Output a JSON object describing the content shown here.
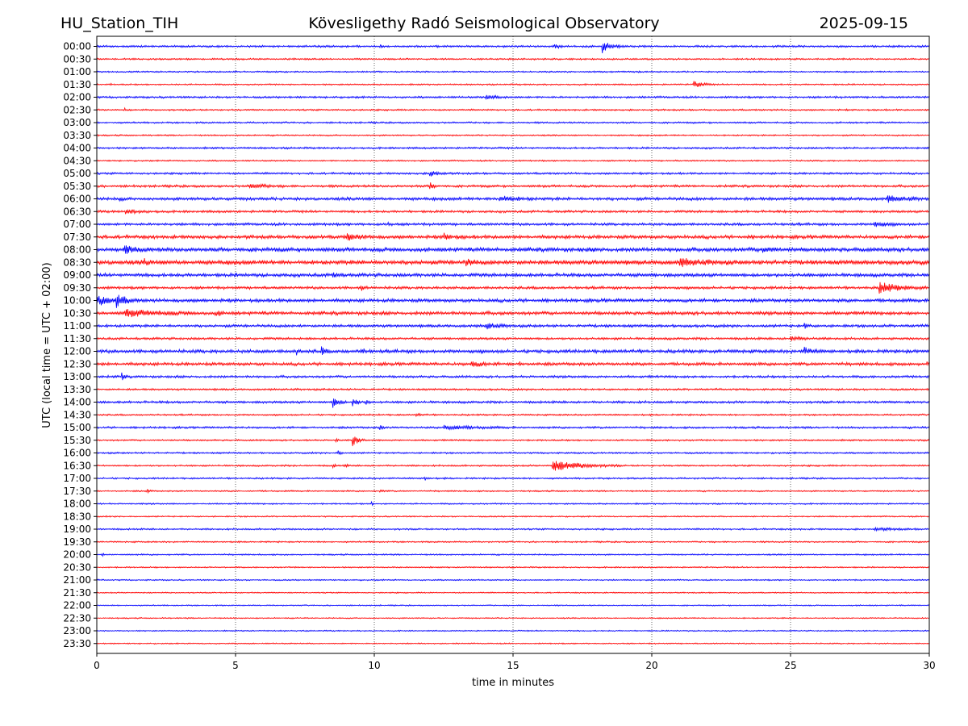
{
  "chart_data": {
    "type": "line",
    "title_left": "HU_Station_TIH",
    "title": "Kövesligethy Radó Seismological Observatory",
    "title_right": "2025-09-15",
    "xlabel": "time in minutes",
    "ylabel": "UTC (local time = UTC + 02:00)",
    "xlim": [
      0,
      30
    ],
    "x_ticks": [
      "0",
      "5",
      "10",
      "15",
      "20",
      "25",
      "30"
    ],
    "grid": "vertical dotted",
    "colors": [
      "#0000ff",
      "#ff0000"
    ],
    "rows": [
      {
        "label": "00:00",
        "color": "#0000ff",
        "noise": 0.3,
        "events": [
          {
            "t": 10.2,
            "amp": 0.5,
            "dur": 0.2
          },
          {
            "t": 16.5,
            "amp": 0.4,
            "dur": 0.6
          },
          {
            "t": 18.2,
            "amp": 1.6,
            "dur": 0.8
          }
        ]
      },
      {
        "label": "00:30",
        "color": "#ff0000",
        "noise": 0.25,
        "events": []
      },
      {
        "label": "01:00",
        "color": "#0000ff",
        "noise": 0.22,
        "events": []
      },
      {
        "label": "01:30",
        "color": "#ff0000",
        "noise": 0.22,
        "events": [
          {
            "t": 0.5,
            "amp": 0.4,
            "dur": 0.1
          },
          {
            "t": 21.5,
            "amp": 1.1,
            "dur": 0.7
          }
        ]
      },
      {
        "label": "02:00",
        "color": "#0000ff",
        "noise": 0.3,
        "events": [
          {
            "t": 14.0,
            "amp": 0.4,
            "dur": 1.2
          }
        ]
      },
      {
        "label": "02:30",
        "color": "#ff0000",
        "noise": 0.25,
        "events": [
          {
            "t": 1.0,
            "amp": 0.5,
            "dur": 0.1
          }
        ]
      },
      {
        "label": "03:00",
        "color": "#0000ff",
        "noise": 0.25,
        "events": []
      },
      {
        "label": "03:30",
        "color": "#ff0000",
        "noise": 0.22,
        "events": []
      },
      {
        "label": "04:00",
        "color": "#0000ff",
        "noise": 0.28,
        "events": []
      },
      {
        "label": "04:30",
        "color": "#ff0000",
        "noise": 0.22,
        "events": []
      },
      {
        "label": "05:00",
        "color": "#0000ff",
        "noise": 0.3,
        "events": [
          {
            "t": 12.0,
            "amp": 0.7,
            "dur": 0.8
          }
        ]
      },
      {
        "label": "05:30",
        "color": "#ff0000",
        "noise": 0.35,
        "events": [
          {
            "t": 5.5,
            "amp": 0.5,
            "dur": 1.5
          },
          {
            "t": 12.0,
            "amp": 0.9,
            "dur": 0.4
          }
        ]
      },
      {
        "label": "06:00",
        "color": "#0000ff",
        "noise": 0.45,
        "events": [
          {
            "t": 0.8,
            "amp": 0.6,
            "dur": 0.2
          },
          {
            "t": 14.5,
            "amp": 0.7,
            "dur": 1.5
          },
          {
            "t": 28.5,
            "amp": 0.6,
            "dur": 1.5
          }
        ]
      },
      {
        "label": "06:30",
        "color": "#ff0000",
        "noise": 0.35,
        "events": [
          {
            "t": 1.0,
            "amp": 0.4,
            "dur": 1.5
          }
        ]
      },
      {
        "label": "07:00",
        "color": "#0000ff",
        "noise": 0.38,
        "events": [
          {
            "t": 10.5,
            "amp": 0.6,
            "dur": 0.2
          },
          {
            "t": 28.0,
            "amp": 0.7,
            "dur": 1.0
          }
        ]
      },
      {
        "label": "07:30",
        "color": "#ff0000",
        "noise": 0.5,
        "events": [
          {
            "t": 9.0,
            "amp": 0.7,
            "dur": 1.2
          },
          {
            "t": 12.5,
            "amp": 0.8,
            "dur": 0.8
          }
        ]
      },
      {
        "label": "08:00",
        "color": "#0000ff",
        "noise": 0.6,
        "events": [
          {
            "t": 1.0,
            "amp": 0.8,
            "dur": 1.0
          },
          {
            "t": 24.0,
            "amp": 0.7,
            "dur": 0.8
          }
        ]
      },
      {
        "label": "08:30",
        "color": "#ff0000",
        "noise": 0.65,
        "events": [
          {
            "t": 1.7,
            "amp": 0.9,
            "dur": 0.3
          },
          {
            "t": 13.3,
            "amp": 0.9,
            "dur": 0.5
          },
          {
            "t": 21.0,
            "amp": 0.7,
            "dur": 2.0
          }
        ]
      },
      {
        "label": "09:00",
        "color": "#0000ff",
        "noise": 0.5,
        "events": [
          {
            "t": 8.5,
            "amp": 0.9,
            "dur": 0.4
          }
        ]
      },
      {
        "label": "09:30",
        "color": "#ff0000",
        "noise": 0.4,
        "events": [
          {
            "t": 9.5,
            "amp": 0.7,
            "dur": 0.3
          },
          {
            "t": 28.2,
            "amp": 1.3,
            "dur": 1.8
          }
        ]
      },
      {
        "label": "10:00",
        "color": "#0000ff",
        "noise": 0.5,
        "events": [
          {
            "t": 0.0,
            "amp": 1.2,
            "dur": 1.2
          },
          {
            "t": 0.7,
            "amp": 1.5,
            "dur": 0.8
          }
        ]
      },
      {
        "label": "10:30",
        "color": "#ff0000",
        "noise": 0.5,
        "events": [
          {
            "t": 1.0,
            "amp": 0.8,
            "dur": 3.0
          },
          {
            "t": 4.3,
            "amp": 0.9,
            "dur": 0.3
          }
        ]
      },
      {
        "label": "11:00",
        "color": "#0000ff",
        "noise": 0.4,
        "events": [
          {
            "t": 14.0,
            "amp": 0.8,
            "dur": 1.0
          },
          {
            "t": 25.5,
            "amp": 0.6,
            "dur": 0.3
          }
        ]
      },
      {
        "label": "11:30",
        "color": "#ff0000",
        "noise": 0.35,
        "events": [
          {
            "t": 25.0,
            "amp": 0.6,
            "dur": 1.0
          }
        ]
      },
      {
        "label": "12:00",
        "color": "#0000ff",
        "noise": 0.5,
        "events": [
          {
            "t": 7.2,
            "amp": 0.7,
            "dur": 0.2
          },
          {
            "t": 8.1,
            "amp": 1.1,
            "dur": 0.3
          },
          {
            "t": 9.5,
            "amp": 0.6,
            "dur": 0.4
          },
          {
            "t": 25.5,
            "amp": 0.9,
            "dur": 0.6
          }
        ]
      },
      {
        "label": "12:30",
        "color": "#ff0000",
        "noise": 0.45,
        "events": [
          {
            "t": 13.5,
            "amp": 0.6,
            "dur": 1.0
          },
          {
            "t": 15.2,
            "amp": 0.8,
            "dur": 0.2
          },
          {
            "t": 29.9,
            "amp": 0.8,
            "dur": 0.1
          }
        ]
      },
      {
        "label": "13:00",
        "color": "#0000ff",
        "noise": 0.35,
        "events": [
          {
            "t": 0.9,
            "amp": 1.3,
            "dur": 0.2
          }
        ]
      },
      {
        "label": "13:30",
        "color": "#ff0000",
        "noise": 0.28,
        "events": []
      },
      {
        "label": "14:00",
        "color": "#0000ff",
        "noise": 0.35,
        "events": [
          {
            "t": 8.5,
            "amp": 1.6,
            "dur": 0.5
          },
          {
            "t": 9.2,
            "amp": 1.3,
            "dur": 0.4
          },
          {
            "t": 9.7,
            "amp": 0.6,
            "dur": 0.3
          }
        ]
      },
      {
        "label": "14:30",
        "color": "#ff0000",
        "noise": 0.25,
        "events": [
          {
            "t": 11.5,
            "amp": 0.3,
            "dur": 0.5
          }
        ]
      },
      {
        "label": "15:00",
        "color": "#0000ff",
        "noise": 0.3,
        "events": [
          {
            "t": 10.2,
            "amp": 0.7,
            "dur": 0.2
          },
          {
            "t": 12.5,
            "amp": 0.6,
            "dur": 2.5
          }
        ]
      },
      {
        "label": "15:30",
        "color": "#ff0000",
        "noise": 0.25,
        "events": [
          {
            "t": 8.6,
            "amp": 0.5,
            "dur": 0.2
          },
          {
            "t": 9.2,
            "amp": 1.6,
            "dur": 0.5
          }
        ]
      },
      {
        "label": "16:00",
        "color": "#0000ff",
        "noise": 0.25,
        "events": [
          {
            "t": 8.7,
            "amp": 1.0,
            "dur": 0.2
          }
        ]
      },
      {
        "label": "16:30",
        "color": "#ff0000",
        "noise": 0.25,
        "events": [
          {
            "t": 8.5,
            "amp": 0.6,
            "dur": 0.2
          },
          {
            "t": 8.9,
            "amp": 0.7,
            "dur": 0.2
          },
          {
            "t": 16.4,
            "amp": 1.5,
            "dur": 2.5
          }
        ]
      },
      {
        "label": "17:00",
        "color": "#0000ff",
        "noise": 0.25,
        "events": [
          {
            "t": 11.8,
            "amp": 0.8,
            "dur": 0.2
          }
        ]
      },
      {
        "label": "17:30",
        "color": "#ff0000",
        "noise": 0.22,
        "events": [
          {
            "t": 1.8,
            "amp": 0.5,
            "dur": 0.3
          },
          {
            "t": 10.2,
            "amp": 0.3,
            "dur": 0.3
          }
        ]
      },
      {
        "label": "18:00",
        "color": "#0000ff",
        "noise": 0.22,
        "events": [
          {
            "t": 9.9,
            "amp": 0.4,
            "dur": 0.1
          }
        ]
      },
      {
        "label": "18:30",
        "color": "#ff0000",
        "noise": 0.2,
        "events": []
      },
      {
        "label": "19:00",
        "color": "#0000ff",
        "noise": 0.25,
        "events": [
          {
            "t": 28.0,
            "amp": 0.3,
            "dur": 2.0
          }
        ]
      },
      {
        "label": "19:30",
        "color": "#ff0000",
        "noise": 0.22,
        "events": []
      },
      {
        "label": "20:00",
        "color": "#0000ff",
        "noise": 0.22,
        "events": [
          {
            "t": 0.2,
            "amp": 0.5,
            "dur": 0.1
          }
        ]
      },
      {
        "label": "20:30",
        "color": "#ff0000",
        "noise": 0.2,
        "events": []
      },
      {
        "label": "21:00",
        "color": "#0000ff",
        "noise": 0.2,
        "events": []
      },
      {
        "label": "21:30",
        "color": "#ff0000",
        "noise": 0.18,
        "events": []
      },
      {
        "label": "22:00",
        "color": "#0000ff",
        "noise": 0.18,
        "events": []
      },
      {
        "label": "22:30",
        "color": "#ff0000",
        "noise": 0.18,
        "events": []
      },
      {
        "label": "23:00",
        "color": "#0000ff",
        "noise": 0.18,
        "events": []
      },
      {
        "label": "23:30",
        "color": "#ff0000",
        "noise": 0.18,
        "events": []
      }
    ]
  }
}
